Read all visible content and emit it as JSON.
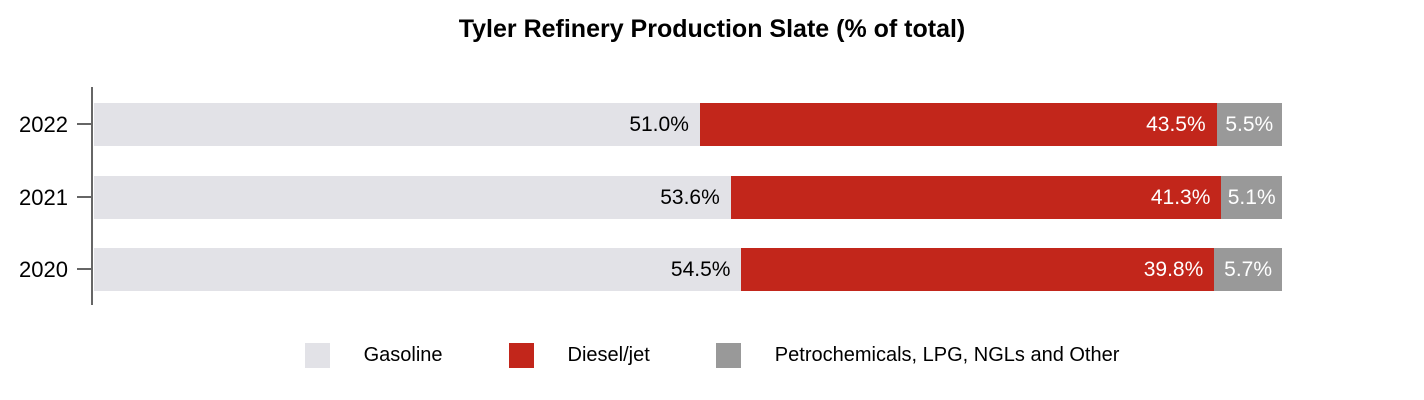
{
  "title": "Tyler Refinery Production Slate (% of total)",
  "colors": {
    "axis": "#666666",
    "background": "#FFFFFF",
    "gasoline": "#E2E2E7",
    "diesel_jet": "#C2261B",
    "petrochemicals": "#999999"
  },
  "chart_data": {
    "type": "bar",
    "orientation": "horizontal",
    "stacked": true,
    "title": "Tyler Refinery Production Slate (% of total)",
    "categories": [
      "2022",
      "2021",
      "2020"
    ],
    "series": [
      {
        "name": "Gasoline",
        "color": "#E2E2E7",
        "label_color": "#000000",
        "values": [
          51.0,
          53.6,
          54.5
        ]
      },
      {
        "name": "Diesel/jet",
        "color": "#C2261B",
        "label_color": "#FFFFFF",
        "values": [
          43.5,
          41.3,
          39.8
        ]
      },
      {
        "name": "Petrochemicals, LPG, NGLs and Other",
        "color": "#999999",
        "label_color": "#FFFFFF",
        "values": [
          5.5,
          5.1,
          5.7
        ]
      }
    ],
    "value_labels": [
      [
        "51.0%",
        "43.5%",
        "5.5%"
      ],
      [
        "53.6%",
        "41.3%",
        "5.1%"
      ],
      [
        "54.5%",
        "39.8%",
        "5.7%"
      ]
    ],
    "xlim": [
      0,
      100
    ],
    "grid": false,
    "legend_position": "bottom"
  }
}
